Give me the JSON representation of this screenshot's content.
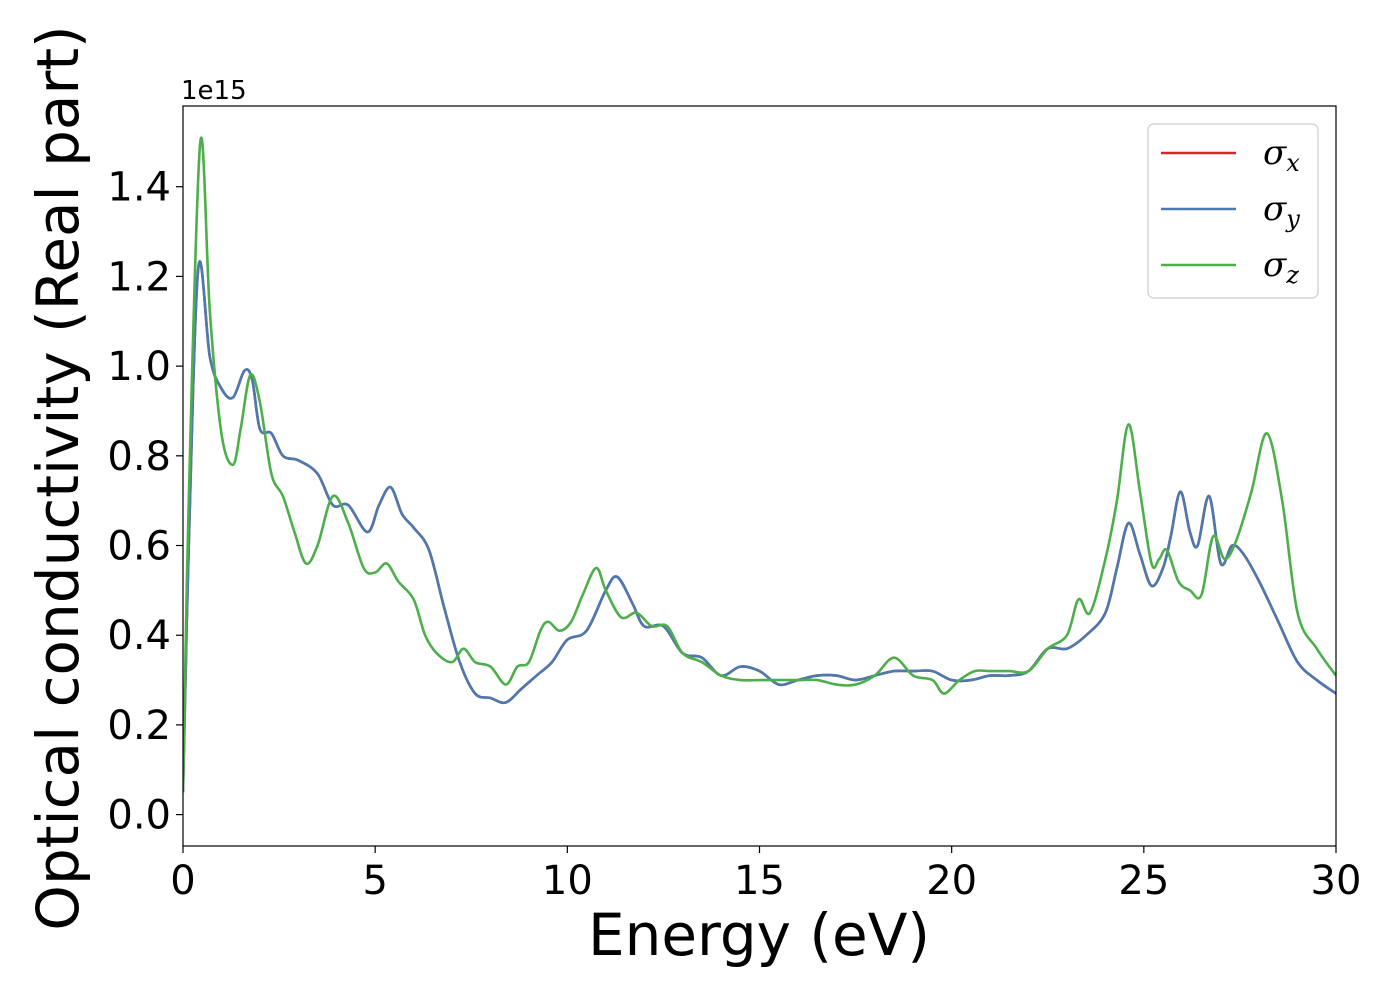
{
  "chart_data": {
    "type": "line",
    "xlabel": "Energy (eV)",
    "ylabel": "Optical conductivity (Real part)",
    "y_offset_label": "1e15",
    "y_scale": 1000000000000000.0,
    "xlim": [
      0,
      30
    ],
    "ylim": [
      -0.07,
      1.58
    ],
    "x_ticks": [
      0,
      5,
      10,
      15,
      20,
      25,
      30
    ],
    "x_tick_labels": [
      "0",
      "5",
      "10",
      "15",
      "20",
      "25",
      "30"
    ],
    "y_ticks": [
      0.0,
      0.2,
      0.4,
      0.6,
      0.8,
      1.0,
      1.2,
      1.4
    ],
    "y_tick_labels": [
      "0.0",
      "0.2",
      "0.4",
      "0.6",
      "0.8",
      "1.0",
      "1.2",
      "1.4"
    ],
    "grid": false,
    "legend_position": "top-right",
    "series": [
      {
        "name": "σx",
        "symbol": "σ",
        "subscript": "x",
        "color": "#d62728",
        "x": [
          0,
          0.15,
          0.4,
          0.7,
          1.0,
          1.3,
          1.6,
          1.8,
          2.0,
          2.3,
          2.6,
          3.0,
          3.5,
          3.9,
          4.3,
          4.8,
          5.1,
          5.4,
          5.7,
          6.0,
          6.4,
          6.8,
          7.2,
          7.6,
          8.0,
          8.4,
          8.8,
          9.2,
          9.6,
          10.0,
          10.5,
          11.0,
          11.3,
          11.7,
          12.0,
          12.5,
          13.0,
          13.5,
          14.0,
          14.5,
          15.0,
          15.5,
          16.0,
          16.5,
          17.0,
          17.5,
          18.0,
          18.5,
          19.0,
          19.5,
          20.0,
          20.5,
          21.0,
          21.5,
          22.0,
          22.5,
          23.0,
          23.5,
          24.0,
          24.3,
          24.6,
          24.9,
          25.2,
          25.5,
          25.7,
          25.95,
          26.2,
          26.4,
          26.7,
          27.0,
          27.3,
          27.6,
          28.0,
          28.5,
          29.0,
          29.5,
          30.0
        ],
        "y": [
          0.05,
          0.6,
          1.22,
          1.02,
          0.95,
          0.93,
          0.99,
          0.97,
          0.86,
          0.85,
          0.8,
          0.79,
          0.76,
          0.69,
          0.69,
          0.63,
          0.69,
          0.73,
          0.67,
          0.64,
          0.59,
          0.46,
          0.34,
          0.27,
          0.26,
          0.25,
          0.28,
          0.31,
          0.34,
          0.39,
          0.41,
          0.5,
          0.53,
          0.47,
          0.42,
          0.42,
          0.36,
          0.35,
          0.31,
          0.33,
          0.32,
          0.29,
          0.3,
          0.31,
          0.31,
          0.3,
          0.31,
          0.32,
          0.32,
          0.32,
          0.3,
          0.3,
          0.31,
          0.31,
          0.32,
          0.37,
          0.37,
          0.4,
          0.45,
          0.55,
          0.65,
          0.58,
          0.51,
          0.55,
          0.62,
          0.72,
          0.63,
          0.6,
          0.71,
          0.56,
          0.6,
          0.58,
          0.52,
          0.43,
          0.34,
          0.3,
          0.27
        ]
      },
      {
        "name": "σy",
        "symbol": "σ",
        "subscript": "y",
        "color": "#4a7ab0",
        "x": [
          0,
          0.15,
          0.4,
          0.7,
          1.0,
          1.3,
          1.6,
          1.8,
          2.0,
          2.3,
          2.6,
          3.0,
          3.5,
          3.9,
          4.3,
          4.8,
          5.1,
          5.4,
          5.7,
          6.0,
          6.4,
          6.8,
          7.2,
          7.6,
          8.0,
          8.4,
          8.8,
          9.2,
          9.6,
          10.0,
          10.5,
          11.0,
          11.3,
          11.7,
          12.0,
          12.5,
          13.0,
          13.5,
          14.0,
          14.5,
          15.0,
          15.5,
          16.0,
          16.5,
          17.0,
          17.5,
          18.0,
          18.5,
          19.0,
          19.5,
          20.0,
          20.5,
          21.0,
          21.5,
          22.0,
          22.5,
          23.0,
          23.5,
          24.0,
          24.3,
          24.6,
          24.9,
          25.2,
          25.5,
          25.7,
          25.95,
          26.2,
          26.4,
          26.7,
          27.0,
          27.3,
          27.6,
          28.0,
          28.5,
          29.0,
          29.5,
          30.0
        ],
        "y": [
          0.05,
          0.6,
          1.22,
          1.02,
          0.95,
          0.93,
          0.99,
          0.97,
          0.86,
          0.85,
          0.8,
          0.79,
          0.76,
          0.69,
          0.69,
          0.63,
          0.69,
          0.73,
          0.67,
          0.64,
          0.59,
          0.46,
          0.34,
          0.27,
          0.26,
          0.25,
          0.28,
          0.31,
          0.34,
          0.39,
          0.41,
          0.5,
          0.53,
          0.47,
          0.42,
          0.42,
          0.36,
          0.35,
          0.31,
          0.33,
          0.32,
          0.29,
          0.3,
          0.31,
          0.31,
          0.3,
          0.31,
          0.32,
          0.32,
          0.32,
          0.3,
          0.3,
          0.31,
          0.31,
          0.32,
          0.37,
          0.37,
          0.4,
          0.45,
          0.55,
          0.65,
          0.58,
          0.51,
          0.55,
          0.62,
          0.72,
          0.63,
          0.6,
          0.71,
          0.56,
          0.6,
          0.58,
          0.52,
          0.43,
          0.34,
          0.3,
          0.27
        ]
      },
      {
        "name": "σz",
        "symbol": "σ",
        "subscript": "z",
        "color": "#4daf4a",
        "x": [
          0,
          0.15,
          0.45,
          0.7,
          1.0,
          1.3,
          1.5,
          1.75,
          2.0,
          2.3,
          2.6,
          2.9,
          3.2,
          3.5,
          3.9,
          4.3,
          4.7,
          5.0,
          5.3,
          5.6,
          6.0,
          6.3,
          6.6,
          7.0,
          7.3,
          7.6,
          8.0,
          8.4,
          8.7,
          9.0,
          9.3,
          9.5,
          9.8,
          10.1,
          10.4,
          10.75,
          11.0,
          11.4,
          11.8,
          12.2,
          12.6,
          13.0,
          13.5,
          14.0,
          14.5,
          15.0,
          15.5,
          16.0,
          16.5,
          17.0,
          17.5,
          18.0,
          18.5,
          19.0,
          19.5,
          19.8,
          20.2,
          20.6,
          21.0,
          21.5,
          22.0,
          22.5,
          23.0,
          23.3,
          23.6,
          24.0,
          24.3,
          24.6,
          24.9,
          25.2,
          25.4,
          25.6,
          25.9,
          26.2,
          26.5,
          26.8,
          27.1,
          27.4,
          27.8,
          28.2,
          28.6,
          29.0,
          29.5,
          30.0
        ],
        "y": [
          0.05,
          0.7,
          1.5,
          1.12,
          0.85,
          0.78,
          0.86,
          0.98,
          0.92,
          0.76,
          0.71,
          0.63,
          0.56,
          0.6,
          0.71,
          0.65,
          0.55,
          0.54,
          0.56,
          0.52,
          0.48,
          0.4,
          0.36,
          0.34,
          0.37,
          0.34,
          0.33,
          0.29,
          0.33,
          0.34,
          0.41,
          0.43,
          0.41,
          0.43,
          0.49,
          0.55,
          0.5,
          0.44,
          0.45,
          0.42,
          0.42,
          0.36,
          0.34,
          0.31,
          0.3,
          0.3,
          0.3,
          0.3,
          0.3,
          0.29,
          0.29,
          0.31,
          0.35,
          0.31,
          0.3,
          0.27,
          0.3,
          0.32,
          0.32,
          0.32,
          0.32,
          0.37,
          0.4,
          0.48,
          0.45,
          0.57,
          0.7,
          0.87,
          0.72,
          0.56,
          0.57,
          0.59,
          0.52,
          0.5,
          0.49,
          0.62,
          0.57,
          0.61,
          0.72,
          0.85,
          0.7,
          0.45,
          0.37,
          0.31
        ]
      }
    ]
  }
}
